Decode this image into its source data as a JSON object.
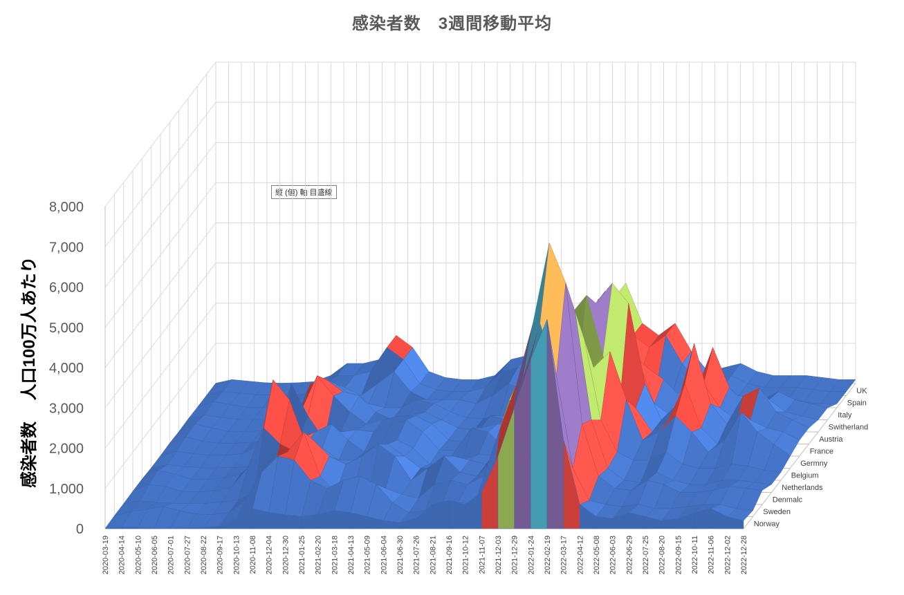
{
  "chart_data": {
    "type": "surface",
    "title": "感染者数　3週間移動平均",
    "ylabel": "感染者数　 人口100万人あたり",
    "ylim": [
      0,
      8000
    ],
    "yticks": [
      "0",
      "1,000",
      "2,000",
      "3,000",
      "4,000",
      "5,000",
      "6,000",
      "7,000",
      "8,000"
    ],
    "x": [
      "2020-03-19",
      "2020-04-14",
      "2020-05-10",
      "2020-06-05",
      "2020-07-01",
      "2020-07-27",
      "2020-08-22",
      "2020-09-17",
      "2020-10-13",
      "2020-11-08",
      "2020-12-04",
      "2020-12-30",
      "2021-01-25",
      "2021-02-20",
      "2021-03-18",
      "2021-04-13",
      "2021-05-09",
      "2021-06-04",
      "2021-06-30",
      "2021-07-26",
      "2021-08-21",
      "2021-09-16",
      "2021-10-12",
      "2021-11-07",
      "2021-12-03",
      "2021-12-29",
      "2022-01-24",
      "2022-02-19",
      "2022-03-17",
      "2022-04-12",
      "2022-05-08",
      "2022-06-03",
      "2022-06-29",
      "2022-07-25",
      "2022-08-20",
      "2022-09-15",
      "2022-10-11",
      "2022-11-06",
      "2022-12-02",
      "2022-12-28"
    ],
    "series": [
      {
        "name": "Norway",
        "values": [
          5,
          30,
          20,
          5,
          5,
          10,
          20,
          60,
          250,
          500,
          400,
          350,
          300,
          350,
          450,
          400,
          300,
          200,
          150,
          250,
          600,
          700,
          600,
          900,
          1800,
          3000,
          4200,
          5200,
          2200,
          600,
          300,
          250,
          400,
          300,
          200,
          250,
          400,
          500,
          300,
          200
        ]
      },
      {
        "name": "Sweden",
        "values": [
          20,
          120,
          180,
          250,
          150,
          60,
          50,
          100,
          400,
          1100,
          1500,
          1400,
          900,
          700,
          900,
          1000,
          800,
          350,
          100,
          150,
          300,
          350,
          300,
          500,
          1200,
          3500,
          4800,
          3500,
          1200,
          400,
          300,
          250,
          300,
          200,
          200,
          250,
          300,
          300,
          200,
          150
        ]
      },
      {
        "name": "Denmalc",
        "values": [
          20,
          90,
          50,
          30,
          20,
          30,
          60,
          120,
          300,
          600,
          1300,
          1800,
          700,
          300,
          250,
          300,
          400,
          250,
          150,
          500,
          600,
          500,
          700,
          1900,
          3000,
          4500,
          6500,
          5500,
          2000,
          700,
          400,
          350,
          600,
          500,
          300,
          300,
          350,
          450,
          400,
          350
        ]
      },
      {
        "name": "Netherlands",
        "values": [
          30,
          200,
          150,
          30,
          10,
          40,
          120,
          600,
          1600,
          1200,
          1000,
          1300,
          900,
          700,
          900,
          1200,
          900,
          300,
          600,
          900,
          500,
          400,
          800,
          2300,
          2000,
          2500,
          5000,
          4500,
          1800,
          600,
          300,
          250,
          500,
          300,
          200,
          200,
          300,
          300,
          250,
          200
        ]
      },
      {
        "name": "Belgium",
        "values": [
          30,
          250,
          150,
          30,
          20,
          60,
          150,
          500,
          2500,
          2000,
          900,
          800,
          500,
          500,
          800,
          900,
          600,
          300,
          300,
          600,
          500,
          400,
          900,
          2500,
          2000,
          2500,
          4000,
          3500,
          1500,
          700,
          500,
          500,
          700,
          400,
          300,
          300,
          400,
          350,
          250,
          200
        ]
      },
      {
        "name": "Germny",
        "values": [
          10,
          90,
          40,
          10,
          10,
          15,
          40,
          70,
          300,
          700,
          900,
          1100,
          700,
          400,
          550,
          700,
          500,
          100,
          50,
          200,
          350,
          300,
          650,
          1700,
          1400,
          1200,
          2000,
          2500,
          2900,
          1700,
          700,
          900,
          1300,
          900,
          400,
          700,
          1400,
          900,
          600,
          300
        ]
      },
      {
        "name": "France",
        "values": [
          10,
          120,
          60,
          20,
          20,
          60,
          250,
          600,
          1800,
          1000,
          400,
          600,
          650,
          600,
          750,
          900,
          600,
          150,
          150,
          700,
          600,
          200,
          200,
          900,
          2200,
          3500,
          4000,
          2500,
          1200,
          1200,
          600,
          900,
          1800,
          700,
          300,
          600,
          900,
          700,
          600,
          400
        ]
      },
      {
        "name": "Austria",
        "values": [
          20,
          180,
          70,
          20,
          20,
          40,
          80,
          300,
          800,
          1700,
          1200,
          800,
          500,
          600,
          700,
          700,
          500,
          100,
          50,
          400,
          500,
          400,
          1000,
          2500,
          1500,
          1500,
          3500,
          4000,
          3500,
          1500,
          600,
          1000,
          2500,
          1000,
          500,
          1200,
          1400,
          800,
          600,
          400
        ]
      },
      {
        "name": "Switherland",
        "values": [
          10,
          200,
          100,
          10,
          10,
          20,
          60,
          200,
          1200,
          1300,
          1000,
          900,
          500,
          300,
          400,
          500,
          300,
          100,
          50,
          400,
          300,
          200,
          500,
          1800,
          1800,
          2000,
          3500,
          2500,
          1800,
          700,
          400,
          700,
          1200,
          600,
          300,
          500,
          800,
          500,
          400,
          300
        ]
      },
      {
        "name": "Italy",
        "values": [
          20,
          120,
          60,
          10,
          10,
          10,
          40,
          100,
          400,
          900,
          600,
          400,
          300,
          300,
          500,
          400,
          200,
          50,
          30,
          100,
          150,
          100,
          200,
          600,
          1200,
          3000,
          2700,
          1500,
          1300,
          1000,
          600,
          700,
          1800,
          800,
          400,
          500,
          700,
          500,
          400,
          300
        ]
      },
      {
        "name": "Spain",
        "values": [
          10,
          150,
          80,
          10,
          10,
          40,
          200,
          300,
          400,
          500,
          300,
          600,
          900,
          400,
          200,
          200,
          200,
          100,
          300,
          600,
          400,
          100,
          100,
          300,
          1400,
          2800,
          2000,
          800,
          500,
          400,
          300,
          400,
          500,
          300,
          200,
          200,
          200,
          150,
          100,
          100
        ]
      },
      {
        "name": "UK",
        "values": [
          10,
          100,
          60,
          20,
          10,
          20,
          50,
          200,
          500,
          500,
          600,
          1200,
          900,
          300,
          150,
          100,
          100,
          200,
          600,
          700,
          500,
          600,
          700,
          800,
          1500,
          2500,
          1500,
          1200,
          1500,
          800,
          300,
          400,
          500,
          300,
          200,
          200,
          200,
          150,
          100,
          100
        ]
      }
    ],
    "band_colors": [
      "#4472C4",
      "#E0463F",
      "#9BBB59",
      "#8064A2",
      "#4BACC6",
      "#F79646",
      "#2C4D75",
      "#772C2A"
    ],
    "band_step": 1000,
    "tooltip": "縦 (値) 軸 目盛線"
  }
}
